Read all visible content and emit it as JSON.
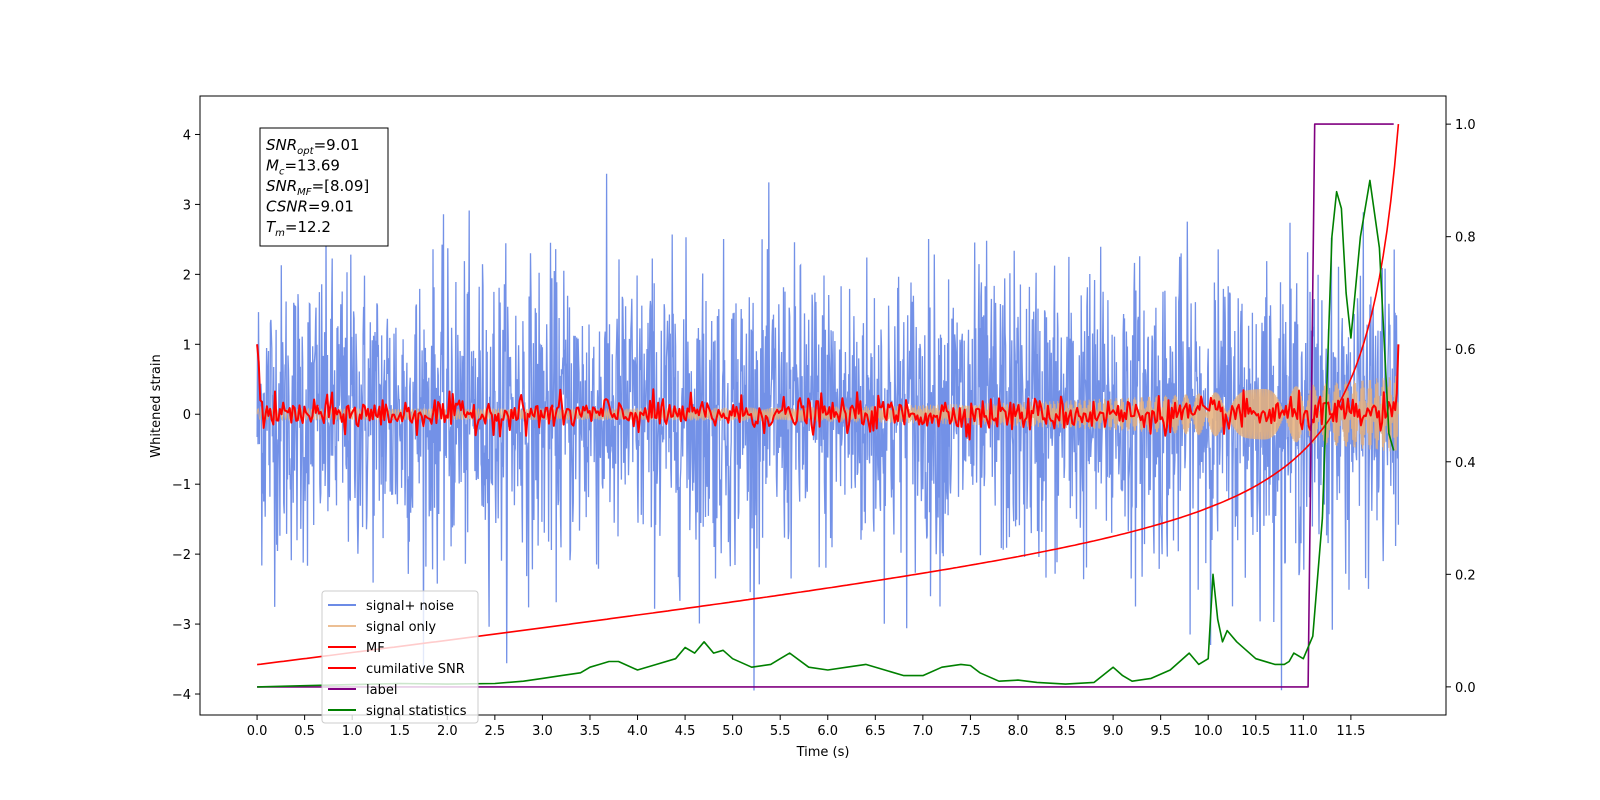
{
  "chart_data": {
    "type": "line",
    "xlabel": "Time (s)",
    "ylabel": "Whitened strain",
    "xlim": [
      -0.6,
      12.5
    ],
    "ylim": [
      -4.3,
      4.55
    ],
    "y2lim": [
      -0.05,
      1.05
    ],
    "x_ticks": [
      0.0,
      0.5,
      1.0,
      1.5,
      2.0,
      2.5,
      3.0,
      3.5,
      4.0,
      4.5,
      5.0,
      5.5,
      6.0,
      6.5,
      7.0,
      7.5,
      8.0,
      8.5,
      9.0,
      9.5,
      10.0,
      10.5,
      11.0,
      11.5
    ],
    "x_tick_labels": [
      "0.0",
      "0.5",
      "1.0",
      "1.5",
      "2.0",
      "2.5",
      "3.0",
      "3.5",
      "4.0",
      "4.5",
      "5.0",
      "5.5",
      "6.0",
      "6.5",
      "7.0",
      "7.5",
      "8.0",
      "8.5",
      "9.0",
      "9.5",
      "10.0",
      "10.5",
      "11.0",
      "11.5"
    ],
    "y_ticks": [
      -4,
      -3,
      -2,
      -1,
      0,
      1,
      2,
      3,
      4
    ],
    "y_tick_labels": [
      "−4",
      "−3",
      "−2",
      "−1",
      "0",
      "1",
      "2",
      "3",
      "4"
    ],
    "y2_ticks": [
      0.0,
      0.2,
      0.4,
      0.6,
      0.8,
      1.0
    ],
    "y2_tick_labels": [
      "0.0",
      "0.2",
      "0.4",
      "0.6",
      "0.8",
      "1.0"
    ],
    "grid": false,
    "legend_position": "lower-left",
    "series": [
      {
        "name": "signal+ noise",
        "color": "#6c8be6",
        "axis": "left",
        "style": "noise",
        "x_range": [
          0.0,
          12.0
        ],
        "amplitude_std": 1.05
      },
      {
        "name": "signal only",
        "color": "#e8b07a",
        "axis": "left",
        "style": "chirp",
        "x_range": [
          0.0,
          12.0
        ],
        "amplitude_start": 0.08,
        "amplitude_end": 0.55
      },
      {
        "name": "MF",
        "color": "#ff0000",
        "axis": "left",
        "style": "jitter",
        "x_range": [
          0.0,
          12.0
        ],
        "start_value": 1.0,
        "end_value": 1.0,
        "amplitude": 0.12
      },
      {
        "name": "cumilative SNR",
        "color": "#ff0000",
        "axis": "right",
        "x": [
          0.0,
          0.5,
          1.0,
          1.5,
          2.0,
          2.5,
          3.0,
          3.5,
          4.0,
          4.5,
          5.0,
          5.5,
          6.0,
          6.5,
          7.0,
          7.5,
          8.0,
          8.5,
          9.0,
          9.5,
          10.0,
          10.5,
          11.0,
          11.5,
          11.8,
          12.0
        ],
        "values": [
          0.03,
          0.04,
          0.055,
          0.07,
          0.085,
          0.1,
          0.115,
          0.13,
          0.145,
          0.16,
          0.175,
          0.19,
          0.205,
          0.22,
          0.235,
          0.255,
          0.275,
          0.3,
          0.33,
          0.37,
          0.42,
          0.48,
          0.55,
          0.68,
          0.82,
          1.0
        ]
      },
      {
        "name": "label",
        "color": "#800080",
        "axis": "right",
        "x": [
          0.0,
          11.05,
          11.12,
          11.95
        ],
        "values": [
          0.0,
          0.0,
          1.0,
          1.0
        ]
      },
      {
        "name": "signal statistics",
        "color": "#008000",
        "axis": "right",
        "x": [
          0.0,
          0.5,
          1.0,
          1.5,
          2.0,
          2.5,
          2.8,
          3.0,
          3.2,
          3.4,
          3.5,
          3.6,
          3.7,
          3.8,
          4.0,
          4.2,
          4.4,
          4.5,
          4.6,
          4.7,
          4.8,
          4.9,
          5.0,
          5.2,
          5.4,
          5.5,
          5.6,
          5.8,
          6.0,
          6.2,
          6.4,
          6.6,
          6.8,
          7.0,
          7.2,
          7.4,
          7.5,
          7.6,
          7.8,
          8.0,
          8.2,
          8.5,
          8.8,
          9.0,
          9.1,
          9.2,
          9.4,
          9.6,
          9.8,
          9.9,
          10.0,
          10.05,
          10.1,
          10.15,
          10.2,
          10.3,
          10.5,
          10.7,
          10.8,
          10.85,
          10.9,
          11.0,
          11.1,
          11.2,
          11.3,
          11.35,
          11.4,
          11.45,
          11.5,
          11.6,
          11.7,
          11.8,
          11.9,
          11.95
        ],
        "values": [
          0.0,
          0.002,
          0.004,
          0.006,
          0.005,
          0.006,
          0.01,
          0.015,
          0.02,
          0.025,
          0.035,
          0.04,
          0.045,
          0.045,
          0.03,
          0.04,
          0.05,
          0.07,
          0.06,
          0.08,
          0.06,
          0.065,
          0.05,
          0.035,
          0.04,
          0.05,
          0.06,
          0.035,
          0.03,
          0.035,
          0.04,
          0.03,
          0.02,
          0.02,
          0.035,
          0.04,
          0.038,
          0.025,
          0.01,
          0.012,
          0.008,
          0.005,
          0.008,
          0.035,
          0.02,
          0.01,
          0.015,
          0.03,
          0.06,
          0.04,
          0.05,
          0.2,
          0.12,
          0.08,
          0.1,
          0.08,
          0.05,
          0.04,
          0.04,
          0.045,
          0.06,
          0.05,
          0.09,
          0.3,
          0.8,
          0.88,
          0.85,
          0.7,
          0.62,
          0.8,
          0.9,
          0.78,
          0.45,
          0.42
        ]
      }
    ]
  },
  "info_box": {
    "lines": [
      {
        "main": "SNR",
        "sub": "opt",
        "value": "=9.01"
      },
      {
        "main": "M",
        "sub": "c",
        "value": "=13.69"
      },
      {
        "main": "SNR",
        "sub": "MF",
        "value": "=[8.09]"
      },
      {
        "main": "CSNR",
        "sub": "",
        "value": "=9.01"
      },
      {
        "main": "T",
        "sub": "m",
        "value": "=12.2"
      }
    ]
  }
}
